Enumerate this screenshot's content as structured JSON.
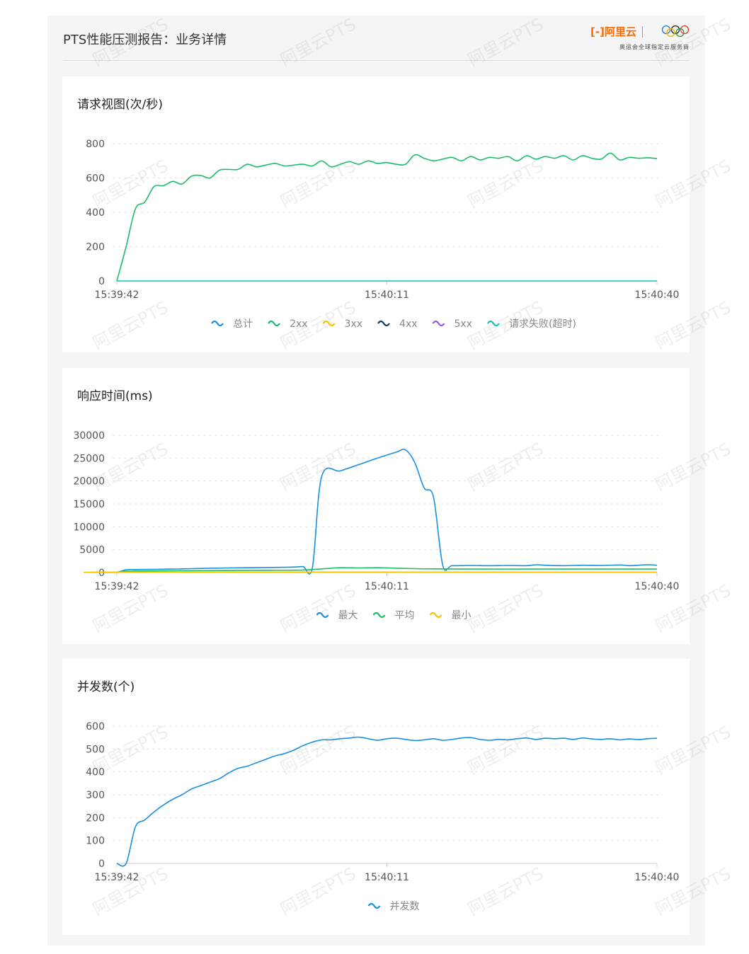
{
  "header": {
    "title": "PTS性能压测报告：业务详情",
    "brand_logo": "阿里云",
    "brand_tagline": "奥运会全球指定云服务商"
  },
  "watermark_text": "阿里云PTS",
  "colors": {
    "total": "#1890e0",
    "2xx": "#19be6b",
    "3xx": "#f5c400",
    "4xx": "#1d3161",
    "5xx": "#9457e6",
    "timeout": "#13c2c2",
    "grid": "#e6e6e6",
    "axis": "#cccccc"
  },
  "chart_data": [
    {
      "id": "rps",
      "type": "line",
      "title": "请求视图(次/秒)",
      "xticks": [
        "15:39:42",
        "15:40:11",
        "15:40:40"
      ],
      "xrange": [
        0,
        58
      ],
      "ylim": [
        0,
        800
      ],
      "yticks": [
        0,
        200,
        400,
        600,
        800
      ],
      "grid": true,
      "legend_position": "bottom-center",
      "legend": [
        {
          "label": "总计",
          "key": "total"
        },
        {
          "label": "2xx",
          "key": "2xx"
        },
        {
          "label": "3xx",
          "key": "3xx"
        },
        {
          "label": "4xx",
          "key": "4xx"
        },
        {
          "label": "5xx",
          "key": "5xx"
        },
        {
          "label": "请求失败(超时)",
          "key": "timeout"
        }
      ],
      "series": [
        {
          "key": "2xx",
          "values": [
            [
              0,
              0
            ],
            [
              1,
              200
            ],
            [
              2,
              420
            ],
            [
              3,
              460
            ],
            [
              4,
              550
            ],
            [
              5,
              555
            ],
            [
              6,
              580
            ],
            [
              7,
              565
            ],
            [
              8,
              610
            ],
            [
              9,
              615
            ],
            [
              10,
              600
            ],
            [
              11,
              645
            ],
            [
              12,
              650
            ],
            [
              13,
              650
            ],
            [
              14,
              680
            ],
            [
              15,
              665
            ],
            [
              16,
              675
            ],
            [
              17,
              685
            ],
            [
              18,
              670
            ],
            [
              19,
              675
            ],
            [
              20,
              680
            ],
            [
              21,
              670
            ],
            [
              22,
              700
            ],
            [
              23,
              665
            ],
            [
              24,
              680
            ],
            [
              25,
              695
            ],
            [
              26,
              680
            ],
            [
              27,
              700
            ],
            [
              28,
              685
            ],
            [
              29,
              690
            ],
            [
              30,
              680
            ],
            [
              31,
              680
            ],
            [
              32,
              735
            ],
            [
              33,
              715
            ],
            [
              34,
              700
            ],
            [
              35,
              710
            ],
            [
              36,
              720
            ],
            [
              37,
              700
            ],
            [
              38,
              725
            ],
            [
              39,
              705
            ],
            [
              40,
              720
            ],
            [
              41,
              715
            ],
            [
              42,
              725
            ],
            [
              43,
              700
            ],
            [
              44,
              730
            ],
            [
              45,
              710
            ],
            [
              46,
              725
            ],
            [
              47,
              715
            ],
            [
              48,
              730
            ],
            [
              49,
              705
            ],
            [
              50,
              730
            ],
            [
              51,
              715
            ],
            [
              52,
              710
            ],
            [
              53,
              745
            ],
            [
              54,
              705
            ],
            [
              55,
              720
            ],
            [
              56,
              715
            ],
            [
              57,
              718
            ],
            [
              58,
              713
            ]
          ]
        },
        {
          "key": "timeout",
          "values": [
            [
              0,
              0
            ],
            [
              58,
              0
            ]
          ]
        }
      ]
    },
    {
      "id": "rt",
      "type": "line",
      "title": "响应时间(ms)",
      "xticks": [
        "15:39:42",
        "15:40:11",
        "15:40:40"
      ],
      "xrange": [
        0,
        58
      ],
      "ylim": [
        0,
        30000
      ],
      "yticks": [
        0,
        5000,
        10000,
        15000,
        20000,
        25000,
        30000
      ],
      "grid": true,
      "legend_position": "bottom-center",
      "legend": [
        {
          "label": "最大",
          "key": "total"
        },
        {
          "label": "平均",
          "key": "2xx"
        },
        {
          "label": "最小",
          "key": "3xx"
        }
      ],
      "series": [
        {
          "key": "total",
          "values": [
            [
              0,
              0
            ],
            [
              1,
              600
            ],
            [
              2,
              650
            ],
            [
              4,
              700
            ],
            [
              6,
              750
            ],
            [
              8,
              850
            ],
            [
              10,
              950
            ],
            [
              12,
              1000
            ],
            [
              14,
              1050
            ],
            [
              16,
              1100
            ],
            [
              18,
              1150
            ],
            [
              19,
              1200
            ],
            [
              20,
              1300
            ],
            [
              21,
              1100
            ],
            [
              22,
              21000
            ],
            [
              24,
              22200
            ],
            [
              26,
              23600
            ],
            [
              28,
              25000
            ],
            [
              30,
              26300
            ],
            [
              31,
              26800
            ],
            [
              32,
              24000
            ],
            [
              33,
              18500
            ],
            [
              34,
              16500
            ],
            [
              35,
              1600
            ],
            [
              36,
              1500
            ],
            [
              38,
              1550
            ],
            [
              40,
              1500
            ],
            [
              42,
              1550
            ],
            [
              44,
              1500
            ],
            [
              45,
              1700
            ],
            [
              46,
              1600
            ],
            [
              48,
              1500
            ],
            [
              50,
              1600
            ],
            [
              52,
              1550
            ],
            [
              54,
              1650
            ],
            [
              55,
              1500
            ],
            [
              56,
              1600
            ],
            [
              57,
              1700
            ],
            [
              58,
              1600
            ]
          ]
        },
        {
          "key": "2xx",
          "values": [
            [
              0,
              0
            ],
            [
              1,
              300
            ],
            [
              4,
              350
            ],
            [
              8,
              400
            ],
            [
              12,
              450
            ],
            [
              16,
              500
            ],
            [
              20,
              550
            ],
            [
              22,
              800
            ],
            [
              24,
              1050
            ],
            [
              26,
              1000
            ],
            [
              28,
              1050
            ],
            [
              30,
              950
            ],
            [
              32,
              850
            ],
            [
              34,
              800
            ],
            [
              38,
              750
            ],
            [
              44,
              750
            ],
            [
              50,
              750
            ],
            [
              58,
              750
            ]
          ]
        },
        {
          "key": "3xx",
          "values": [
            [
              0,
              0
            ],
            [
              1,
              100
            ],
            [
              58,
              100
            ]
          ]
        }
      ]
    },
    {
      "id": "concurrency",
      "type": "line",
      "title": "并发数(个)",
      "xticks": [
        "15:39:42",
        "15:40:11",
        "15:40:40"
      ],
      "xrange": [
        0,
        58
      ],
      "ylim": [
        0,
        600
      ],
      "yticks": [
        0,
        100,
        200,
        300,
        400,
        500,
        600
      ],
      "grid": true,
      "legend_position": "bottom-center",
      "legend": [
        {
          "label": "并发数",
          "key": "total"
        }
      ],
      "series": [
        {
          "key": "total",
          "values": [
            [
              0,
              0
            ],
            [
              1,
              0
            ],
            [
              2,
              160
            ],
            [
              3,
              190
            ],
            [
              4,
              225
            ],
            [
              5,
              255
            ],
            [
              6,
              280
            ],
            [
              7,
              300
            ],
            [
              8,
              325
            ],
            [
              9,
              340
            ],
            [
              10,
              355
            ],
            [
              11,
              370
            ],
            [
              12,
              395
            ],
            [
              13,
              415
            ],
            [
              14,
              425
            ],
            [
              15,
              440
            ],
            [
              16,
              455
            ],
            [
              17,
              470
            ],
            [
              18,
              480
            ],
            [
              19,
              495
            ],
            [
              20,
              515
            ],
            [
              21,
              530
            ],
            [
              22,
              540
            ],
            [
              23,
              540
            ],
            [
              24,
              545
            ],
            [
              25,
              548
            ],
            [
              26,
              552
            ],
            [
              27,
              545
            ],
            [
              28,
              538
            ],
            [
              29,
              545
            ],
            [
              30,
              547
            ],
            [
              31,
              542
            ],
            [
              32,
              537
            ],
            [
              33,
              540
            ],
            [
              34,
              545
            ],
            [
              35,
              538
            ],
            [
              36,
              542
            ],
            [
              37,
              548
            ],
            [
              38,
              550
            ],
            [
              39,
              542
            ],
            [
              40,
              538
            ],
            [
              41,
              542
            ],
            [
              42,
              540
            ],
            [
              43,
              545
            ],
            [
              44,
              548
            ],
            [
              45,
              542
            ],
            [
              46,
              547
            ],
            [
              47,
              545
            ],
            [
              48,
              547
            ],
            [
              49,
              542
            ],
            [
              50,
              548
            ],
            [
              51,
              544
            ],
            [
              52,
              542
            ],
            [
              53,
              545
            ],
            [
              54,
              540
            ],
            [
              55,
              544
            ],
            [
              56,
              541
            ],
            [
              57,
              545
            ],
            [
              58,
              547
            ]
          ]
        }
      ]
    }
  ]
}
